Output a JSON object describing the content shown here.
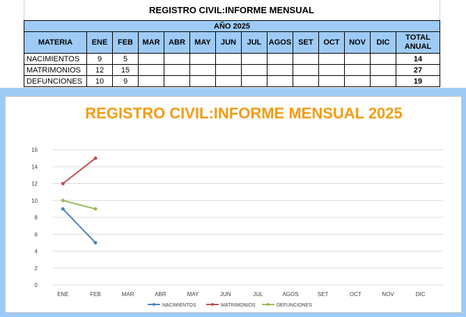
{
  "sheet": {
    "title": "REGISTRO CIVIL:INFORME MENSUAL",
    "year_header": "AÑO 2025",
    "headers": {
      "materia": "MATERIA",
      "months": [
        "ENE",
        "FEB",
        "MAR",
        "ABR",
        "MAY",
        "JUN",
        "JUL",
        "AGOS",
        "SET",
        "OCT",
        "NOV",
        "DIC"
      ],
      "total_line1": "TOTAL",
      "total_line2": "ANUAL"
    },
    "rows": [
      {
        "name": "NACIMIENTOS",
        "values": [
          "9",
          "5",
          "",
          "",
          "",
          "",
          "",
          "",
          "",
          "",
          "",
          ""
        ],
        "total": "14"
      },
      {
        "name": "MATRIMONIOS",
        "values": [
          "12",
          "15",
          "",
          "",
          "",
          "",
          "",
          "",
          "",
          "",
          "",
          ""
        ],
        "total": "27"
      },
      {
        "name": "DEFUNCIONES",
        "values": [
          "10",
          "9",
          "",
          "",
          "",
          "",
          "",
          "",
          "",
          "",
          "",
          ""
        ],
        "total": "19"
      }
    ]
  },
  "chart_data": {
    "type": "line",
    "title": "REGISTRO CIVIL:INFORME MENSUAL 2025",
    "xlabel": "",
    "ylabel": "",
    "categories": [
      "ENE",
      "FEB",
      "MAR",
      "ABR",
      "MAY",
      "JUN",
      "JUL",
      "AGOS",
      "SET",
      "OCT",
      "NOV",
      "DIC"
    ],
    "ylim": [
      0,
      16
    ],
    "yticks": [
      0,
      2,
      4,
      6,
      8,
      10,
      12,
      14,
      16
    ],
    "grid": true,
    "legend": "bottom",
    "series": [
      {
        "name": "NACIMIENTOS",
        "values": [
          9,
          5,
          null,
          null,
          null,
          null,
          null,
          null,
          null,
          null,
          null,
          null
        ],
        "color": "#4f81bd"
      },
      {
        "name": "MATRIMONIOS",
        "values": [
          12,
          15,
          null,
          null,
          null,
          null,
          null,
          null,
          null,
          null,
          null,
          null
        ],
        "color": "#c0504d"
      },
      {
        "name": "DEFUNCIONES",
        "values": [
          10,
          9,
          null,
          null,
          null,
          null,
          null,
          null,
          null,
          null,
          null,
          null
        ],
        "color": "#9bbb59"
      }
    ],
    "title_color": "#f39c12"
  }
}
